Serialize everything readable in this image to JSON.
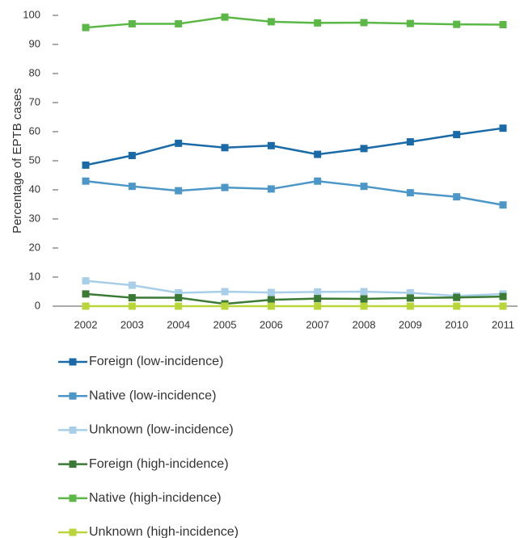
{
  "chart_data": {
    "type": "line",
    "y_label": "Percentage of EPTB cases",
    "categories": [
      "2002",
      "2003",
      "2004",
      "2005",
      "2006",
      "2007",
      "2008",
      "2009",
      "2010",
      "2011"
    ],
    "ylim": [
      0,
      100
    ],
    "yticks": [
      0,
      10,
      20,
      30,
      40,
      50,
      60,
      70,
      80,
      90,
      100
    ],
    "series": [
      {
        "name": "Foreign (low-incidence)",
        "color": "#1a6aa8",
        "values": [
          48.5,
          51.8,
          56,
          54.5,
          55.2,
          52.2,
          54.2,
          56.5,
          59,
          61.2
        ]
      },
      {
        "name": "Native (low-incidence)",
        "color": "#4d96c8",
        "values": [
          43,
          41.2,
          39.7,
          40.8,
          40.3,
          43,
          41.2,
          39,
          37.6,
          34.8
        ]
      },
      {
        "name": "Unknown (low-incidence)",
        "color": "#a9cfe8",
        "values": [
          8.7,
          7.2,
          4.6,
          5,
          4.7,
          4.9,
          5,
          4.6,
          3.5,
          4.2
        ]
      },
      {
        "name": "Foreign (high-incidence)",
        "color": "#3a7a35",
        "values": [
          4.2,
          2.9,
          2.9,
          0.8,
          2.2,
          2.6,
          2.5,
          2.8,
          3,
          3.3
        ]
      },
      {
        "name": "Native (high-incidence)",
        "color": "#5cb846",
        "values": [
          95.8,
          97.1,
          97.1,
          99.4,
          97.8,
          97.4,
          97.5,
          97.2,
          96.9,
          96.8
        ]
      },
      {
        "name": "Unknown (high-incidence)",
        "color": "#b8d63a",
        "values": [
          0,
          0,
          0,
          0,
          0,
          0,
          0,
          0,
          0,
          0
        ]
      }
    ]
  }
}
